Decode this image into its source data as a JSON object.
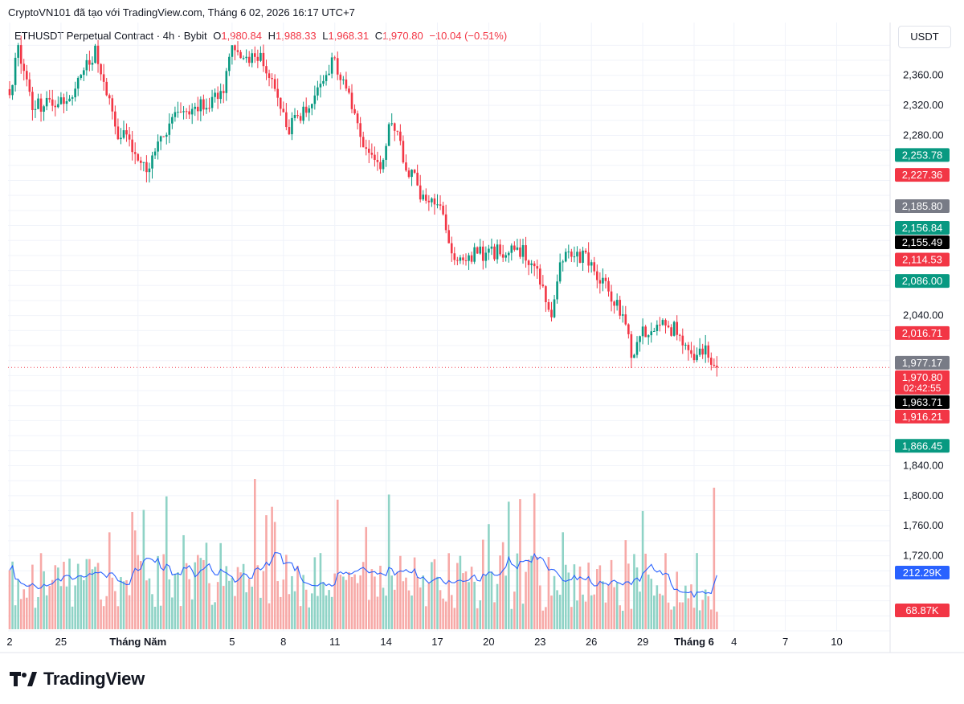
{
  "header": {
    "attribution": "CryptoVN101 đã tạo với TradingView.com, Tháng 6 02, 2026 16:17 UTC+7"
  },
  "legend": {
    "symbol": "ETHUSDT Perpetual Contract · 4h · Bybit",
    "o_label": "O",
    "o_value": "1,980.84",
    "h_label": "H",
    "h_value": "1,988.33",
    "l_label": "L",
    "l_value": "1,968.31",
    "c_label": "C",
    "c_value": "1,970.80",
    "change": "−10.04 (−0.51%)"
  },
  "unit_label": "USDT",
  "brand": {
    "name": "TradingView"
  },
  "colors": {
    "up": "#089981",
    "down": "#f23645",
    "vol_up": "#8fd3c6",
    "vol_down": "#f7a9a7",
    "ma": "#2962ff",
    "grid": "#f0f3fa",
    "text": "#131722",
    "gray_tag": "#787b86",
    "black_tag": "#000000"
  },
  "chart_data": {
    "type": "candlestick",
    "timeframe": "4h",
    "ylim": [
      1620,
      2410
    ],
    "y_ticks": [
      {
        "value": 2360,
        "label": "2,360.00"
      },
      {
        "value": 2320,
        "label": "2,320.00"
      },
      {
        "value": 2280,
        "label": "2,280.00"
      },
      {
        "value": 2040,
        "label": "2,040.00"
      },
      {
        "value": 1840,
        "label": "1,840.00"
      },
      {
        "value": 1800,
        "label": "1,800.00"
      },
      {
        "value": 1760,
        "label": "1,760.00"
      },
      {
        "value": 1720,
        "label": "1,720.00"
      }
    ],
    "x_ticks": [
      {
        "index": 0,
        "label": "2",
        "bold": false
      },
      {
        "index": 18,
        "label": "25",
        "bold": false
      },
      {
        "index": 45,
        "label": "Tháng Năm",
        "bold": true
      },
      {
        "index": 78,
        "label": "5",
        "bold": false
      },
      {
        "index": 96,
        "label": "8",
        "bold": false
      },
      {
        "index": 114,
        "label": "11",
        "bold": false
      },
      {
        "index": 132,
        "label": "14",
        "bold": false
      },
      {
        "index": 150,
        "label": "17",
        "bold": false
      },
      {
        "index": 168,
        "label": "20",
        "bold": false
      },
      {
        "index": 186,
        "label": "23",
        "bold": false
      },
      {
        "index": 204,
        "label": "26",
        "bold": false
      },
      {
        "index": 222,
        "label": "29",
        "bold": false
      },
      {
        "index": 240,
        "label": "Tháng 6",
        "bold": true
      },
      {
        "index": 254,
        "label": "4",
        "bold": false
      },
      {
        "index": 272,
        "label": "7",
        "bold": false
      },
      {
        "index": 290,
        "label": "10",
        "bold": false
      }
    ],
    "price_anchors": [
      [
        0,
        2330
      ],
      [
        3,
        2395
      ],
      [
        8,
        2320
      ],
      [
        14,
        2320
      ],
      [
        22,
        2330
      ],
      [
        30,
        2395
      ],
      [
        38,
        2285
      ],
      [
        48,
        2240
      ],
      [
        53,
        2270
      ],
      [
        58,
        2300
      ],
      [
        66,
        2320
      ],
      [
        74,
        2330
      ],
      [
        78,
        2395
      ],
      [
        82,
        2380
      ],
      [
        88,
        2380
      ],
      [
        92,
        2350
      ],
      [
        98,
        2290
      ],
      [
        102,
        2310
      ],
      [
        108,
        2340
      ],
      [
        114,
        2380
      ],
      [
        118,
        2345
      ],
      [
        124,
        2270
      ],
      [
        130,
        2240
      ],
      [
        134,
        2300
      ],
      [
        138,
        2250
      ],
      [
        146,
        2190
      ],
      [
        152,
        2180
      ],
      [
        156,
        2110
      ],
      [
        162,
        2120
      ],
      [
        170,
        2125
      ],
      [
        178,
        2130
      ],
      [
        184,
        2110
      ],
      [
        190,
        2040
      ],
      [
        194,
        2120
      ],
      [
        202,
        2120
      ],
      [
        208,
        2080
      ],
      [
        214,
        2050
      ],
      [
        218,
        1990
      ],
      [
        222,
        2020
      ],
      [
        228,
        2025
      ],
      [
        234,
        2020
      ],
      [
        240,
        1990
      ],
      [
        244,
        1998
      ],
      [
        248,
        1971
      ]
    ],
    "last_close": 1970.8,
    "volume_scale": {
      "max": 600000,
      "ma": 212290,
      "last": 68870
    },
    "price_tags": [
      {
        "value": 2253.78,
        "label": "2,253.78",
        "color": "up"
      },
      {
        "value": 2227.36,
        "label": "2,227.36",
        "color": "down"
      },
      {
        "value": 2185.8,
        "label": "2,185.80",
        "color": "gray_tag"
      },
      {
        "value": 2156.84,
        "label": "2,156.84",
        "color": "up"
      },
      {
        "value": 2155.49,
        "label": "2,155.49",
        "color": "black_tag"
      },
      {
        "value": 2114.53,
        "label": "2,114.53",
        "color": "down"
      },
      {
        "value": 2086.0,
        "label": "2,086.00",
        "color": "up"
      },
      {
        "value": 2016.71,
        "label": "2,016.71",
        "color": "down"
      },
      {
        "value": 1977.17,
        "label": "1,977.17",
        "color": "gray_tag"
      },
      {
        "value": 1970.8,
        "label": "1,970.80",
        "color": "down",
        "countdown": "02:42:55"
      },
      {
        "value": 1963.71,
        "label": "1,963.71",
        "color": "black_tag"
      },
      {
        "value": 1916.21,
        "label": "1,916.21",
        "color": "down"
      },
      {
        "value": 1866.45,
        "label": "1,866.45",
        "color": "up"
      }
    ],
    "volume_tags": [
      {
        "label": "212.29K",
        "color": "ma"
      },
      {
        "label": "68.87K",
        "color": "down"
      }
    ]
  }
}
